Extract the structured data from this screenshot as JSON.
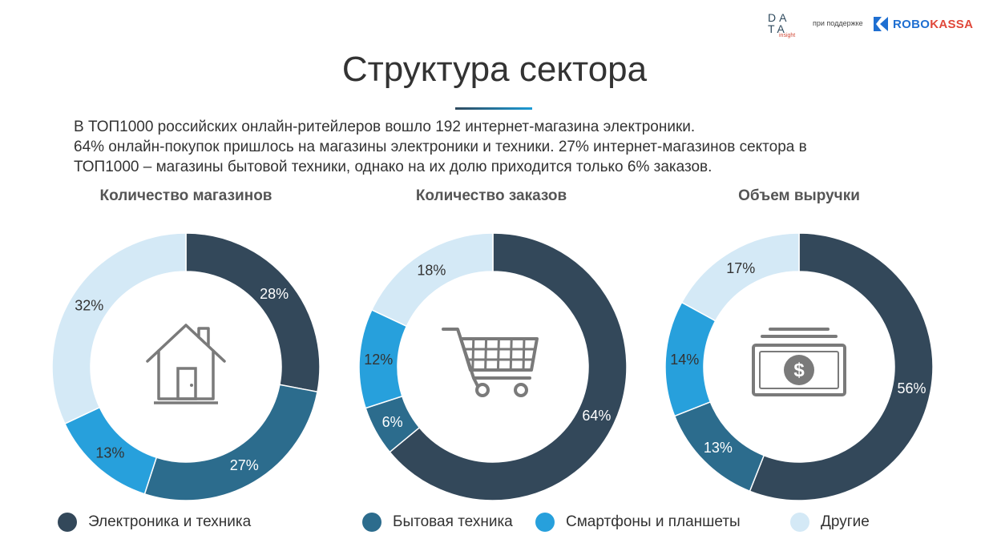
{
  "header": {
    "logo_line1": "DA",
    "logo_line2": "TA",
    "logo_sub": "insight",
    "support_text": "при поддержке",
    "partner_a": "ROBO",
    "partner_b": "KASSA"
  },
  "title": "Структура сектора",
  "intro": [
    "В ТОП1000 российских онлайн-ритейлеров вошло 192 интернет-магазина электроники.",
    "64% онлайн-покупок пришлось на магазины электроники и техники. 27% интернет-магазинов сектора в",
    "ТОП1000 – магазины бытовой техники, однако на их долю приходится только 6% заказов."
  ],
  "colors": {
    "electronics": "#33485a",
    "appliances": "#2c6c8d",
    "smartphones": "#27a0dc",
    "other": "#d4e9f6"
  },
  "legend": [
    {
      "label": "Электроника и техника",
      "color": "#33485a"
    },
    {
      "label": "Бытовая техника",
      "color": "#2c6c8d"
    },
    {
      "label": "Смартфоны и планшеты",
      "color": "#27a0dc"
    },
    {
      "label": "Другие",
      "color": "#d4e9f6"
    }
  ],
  "chart_data": [
    {
      "type": "pie",
      "title": "Количество магазинов",
      "icon": "house-icon",
      "categories": [
        "Электроника и техника",
        "Бытовая техника",
        "Смартфоны и планшеты",
        "Другие"
      ],
      "values": [
        28,
        27,
        13,
        32
      ],
      "labels": [
        "28%",
        "27%",
        "13%",
        "32%"
      ]
    },
    {
      "type": "pie",
      "title": "Количество заказов",
      "icon": "shopping-cart-icon",
      "categories": [
        "Электроника и техника",
        "Бытовая техника",
        "Смартфоны и планшеты",
        "Другие"
      ],
      "values": [
        64,
        6,
        12,
        18
      ],
      "labels": [
        "64%",
        "6%",
        "12%",
        "18%"
      ]
    },
    {
      "type": "pie",
      "title": "Объем выручки",
      "icon": "money-icon",
      "categories": [
        "Электроника и техника",
        "Бытовая техника",
        "Смартфоны и планшеты",
        "Другие"
      ],
      "values": [
        56,
        13,
        14,
        17
      ],
      "labels": [
        "56%",
        "13%",
        "14%",
        "17%"
      ]
    }
  ]
}
